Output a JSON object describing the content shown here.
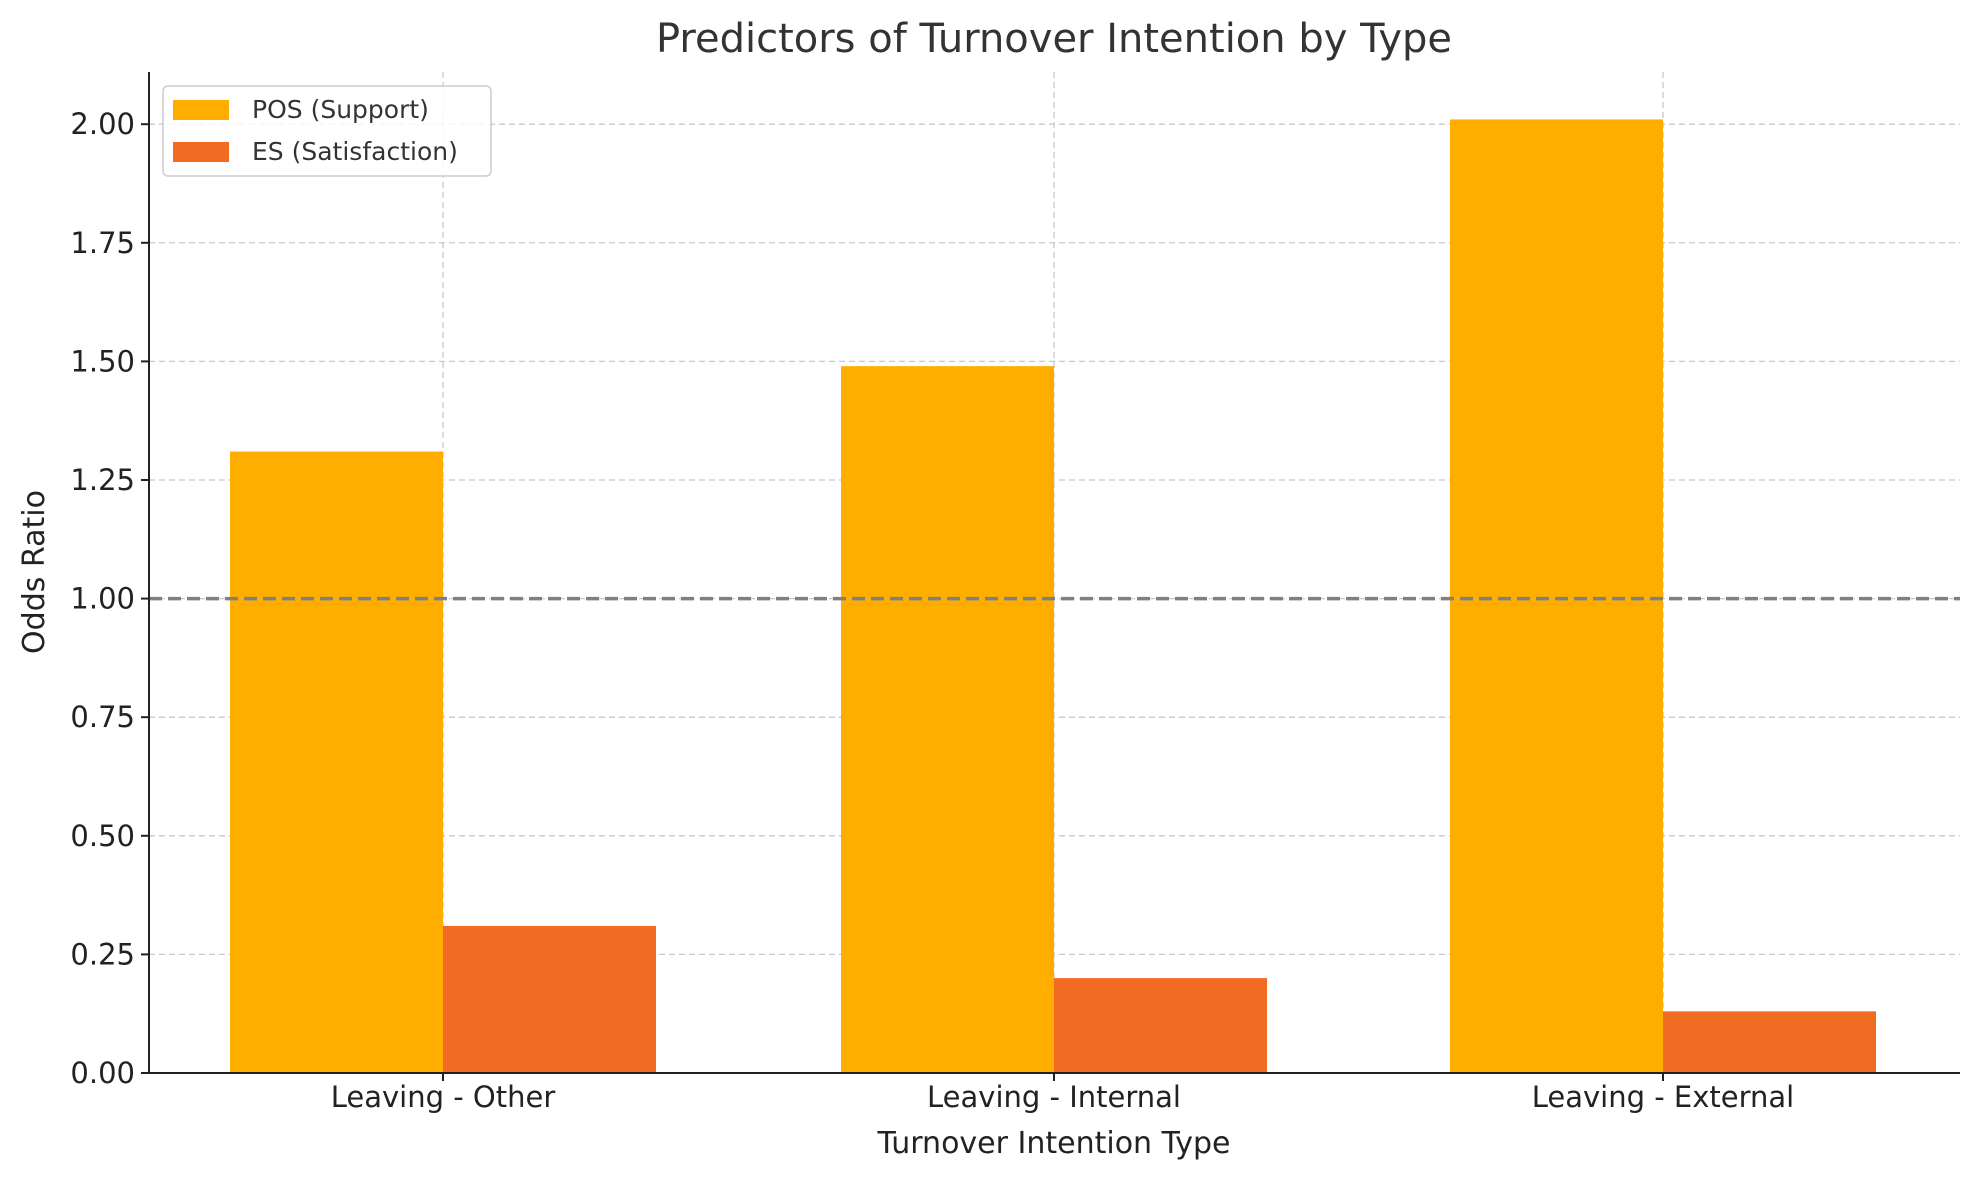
{
  "chart_data": {
    "type": "bar",
    "title": "Predictors of Turnover Intention by Type",
    "xlabel": "Turnover Intention Type",
    "ylabel": "Odds Ratio",
    "categories": [
      "Leaving - Other",
      "Leaving - Internal",
      "Leaving - External"
    ],
    "series": [
      {
        "name": "POS (Support)",
        "color": "#FFAE00",
        "values": [
          1.31,
          1.49,
          2.01
        ]
      },
      {
        "name": "ES (Satisfaction)",
        "color": "#F26B23",
        "values": [
          0.31,
          0.2,
          0.13
        ]
      }
    ],
    "ylim": [
      0,
      2.11
    ],
    "yticks": [
      "0.00",
      "0.25",
      "0.50",
      "0.75",
      "1.00",
      "1.25",
      "1.50",
      "1.75",
      "2.00"
    ],
    "reference_line": {
      "y": 1.0,
      "style": "dashed",
      "color": "#808080"
    },
    "grid": true,
    "legend_position": "top-left"
  }
}
